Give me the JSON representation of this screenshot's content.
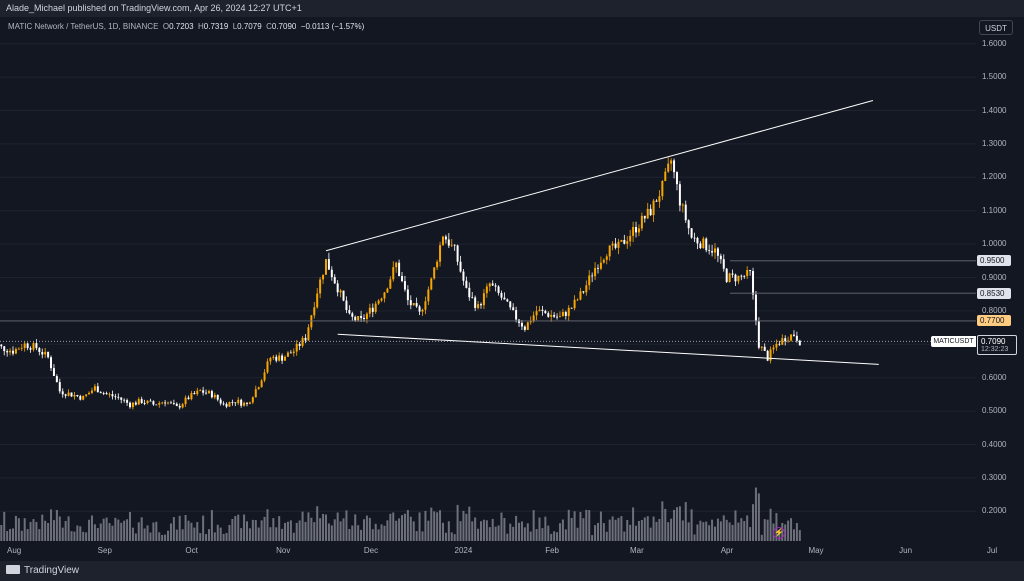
{
  "header": {
    "publisher": "Alade_Michael published on TradingView.com, Apr 26, 2024 12:27 UTC+1",
    "symbol_line": "MATIC Network / TetherUS, 1D, BINANCE",
    "open_label": "O",
    "open": "0.7203",
    "high_label": "H",
    "high": "0.7319",
    "low_label": "L",
    "low": "0.7079",
    "close_label": "C",
    "close": "0.7090",
    "change": "−0.0113 (−1.57%)"
  },
  "currency": "USDT",
  "footer": {
    "brand": "TradingView"
  },
  "price_tag": {
    "symbol": "MATICUSDT",
    "price": "0.7090",
    "countdown": "12:32:23"
  },
  "levels": [
    {
      "label": "0.9500",
      "value": 0.95,
      "bg": "#e0e3eb",
      "fg": "#131722"
    },
    {
      "label": "0.8530",
      "value": 0.853,
      "bg": "#e0e3eb",
      "fg": "#131722"
    },
    {
      "label": "0.7700",
      "value": 0.77,
      "bg": "#ffcc80",
      "fg": "#131722"
    }
  ],
  "colors": {
    "up": "#f7a600",
    "down": "#ffffff",
    "volume": "#8c8f99",
    "trendline": "#ffffff",
    "background": "#131722"
  },
  "chart_data": {
    "type": "candlestick",
    "y_axis": {
      "ticks": [
        "1.6000",
        "1.5000",
        "1.4000",
        "1.3000",
        "1.2000",
        "1.1000",
        "1.0000",
        "0.9000",
        "0.8000",
        "0.7000",
        "0.6000",
        "0.5000",
        "0.4000",
        "0.3000",
        "0.2000"
      ],
      "range": [
        0.12,
        1.64
      ],
      "position": "right"
    },
    "x_axis": {
      "ticks": [
        "Aug",
        "Sep",
        "Oct",
        "Nov",
        "Dec",
        "2024",
        "Feb",
        "Mar",
        "Apr",
        "May",
        "Jun",
        "Jul"
      ]
    },
    "close_series": [
      [
        "2023-07-24",
        0.71
      ],
      [
        "2023-07-28",
        0.69
      ],
      [
        "2023-08-01",
        0.68
      ],
      [
        "2023-08-05",
        0.7
      ],
      [
        "2023-08-09",
        0.69
      ],
      [
        "2023-08-13",
        0.66
      ],
      [
        "2023-08-17",
        0.56
      ],
      [
        "2023-08-21",
        0.55
      ],
      [
        "2023-08-25",
        0.54
      ],
      [
        "2023-08-29",
        0.57
      ],
      [
        "2023-09-02",
        0.55
      ],
      [
        "2023-09-06",
        0.54
      ],
      [
        "2023-09-10",
        0.52
      ],
      [
        "2023-09-14",
        0.53
      ],
      [
        "2023-09-18",
        0.52
      ],
      [
        "2023-09-22",
        0.53
      ],
      [
        "2023-09-26",
        0.51
      ],
      [
        "2023-09-30",
        0.54
      ],
      [
        "2023-10-04",
        0.56
      ],
      [
        "2023-10-08",
        0.55
      ],
      [
        "2023-10-12",
        0.52
      ],
      [
        "2023-10-16",
        0.53
      ],
      [
        "2023-10-20",
        0.52
      ],
      [
        "2023-10-24",
        0.58
      ],
      [
        "2023-10-28",
        0.66
      ],
      [
        "2023-11-01",
        0.66
      ],
      [
        "2023-11-05",
        0.68
      ],
      [
        "2023-11-09",
        0.72
      ],
      [
        "2023-11-13",
        0.86
      ],
      [
        "2023-11-16",
        0.95
      ],
      [
        "2023-11-20",
        0.87
      ],
      [
        "2023-11-24",
        0.78
      ],
      [
        "2023-11-28",
        0.77
      ],
      [
        "2023-12-02",
        0.81
      ],
      [
        "2023-12-06",
        0.86
      ],
      [
        "2023-12-10",
        0.94
      ],
      [
        "2023-12-14",
        0.83
      ],
      [
        "2023-12-18",
        0.79
      ],
      [
        "2023-12-22",
        0.89
      ],
      [
        "2023-12-26",
        1.03
      ],
      [
        "2023-12-30",
        0.98
      ],
      [
        "2024-01-03",
        0.86
      ],
      [
        "2024-01-07",
        0.81
      ],
      [
        "2024-01-11",
        0.88
      ],
      [
        "2024-01-15",
        0.84
      ],
      [
        "2024-01-19",
        0.79
      ],
      [
        "2024-01-23",
        0.75
      ],
      [
        "2024-01-27",
        0.8
      ],
      [
        "2024-01-31",
        0.79
      ],
      [
        "2024-02-04",
        0.78
      ],
      [
        "2024-02-08",
        0.81
      ],
      [
        "2024-02-12",
        0.86
      ],
      [
        "2024-02-16",
        0.93
      ],
      [
        "2024-02-20",
        0.98
      ],
      [
        "2024-02-24",
        0.99
      ],
      [
        "2024-02-28",
        1.03
      ],
      [
        "2024-03-02",
        1.06
      ],
      [
        "2024-03-06",
        1.1
      ],
      [
        "2024-03-10",
        1.17
      ],
      [
        "2024-03-13",
        1.25
      ],
      [
        "2024-03-16",
        1.13
      ],
      [
        "2024-03-20",
        1.02
      ],
      [
        "2024-03-24",
        1.0
      ],
      [
        "2024-03-28",
        0.98
      ],
      [
        "2024-04-01",
        0.9
      ],
      [
        "2024-04-05",
        0.9
      ],
      [
        "2024-04-09",
        0.91
      ],
      [
        "2024-04-12",
        0.7
      ],
      [
        "2024-04-15",
        0.66
      ],
      [
        "2024-04-18",
        0.7
      ],
      [
        "2024-04-21",
        0.72
      ],
      [
        "2024-04-24",
        0.73
      ],
      [
        "2024-04-26",
        0.709
      ]
    ],
    "volume": {
      "max_axis": 0.4
    },
    "trendlines": [
      {
        "from": [
          "2023-11-16",
          0.98
        ],
        "to": [
          "2024-05-21",
          1.43
        ]
      },
      {
        "from": [
          "2023-11-20",
          0.73
        ],
        "to": [
          "2024-05-23",
          0.64
        ]
      }
    ],
    "horizontal_lines": [
      0.95,
      0.853,
      0.77,
      0.709
    ]
  }
}
